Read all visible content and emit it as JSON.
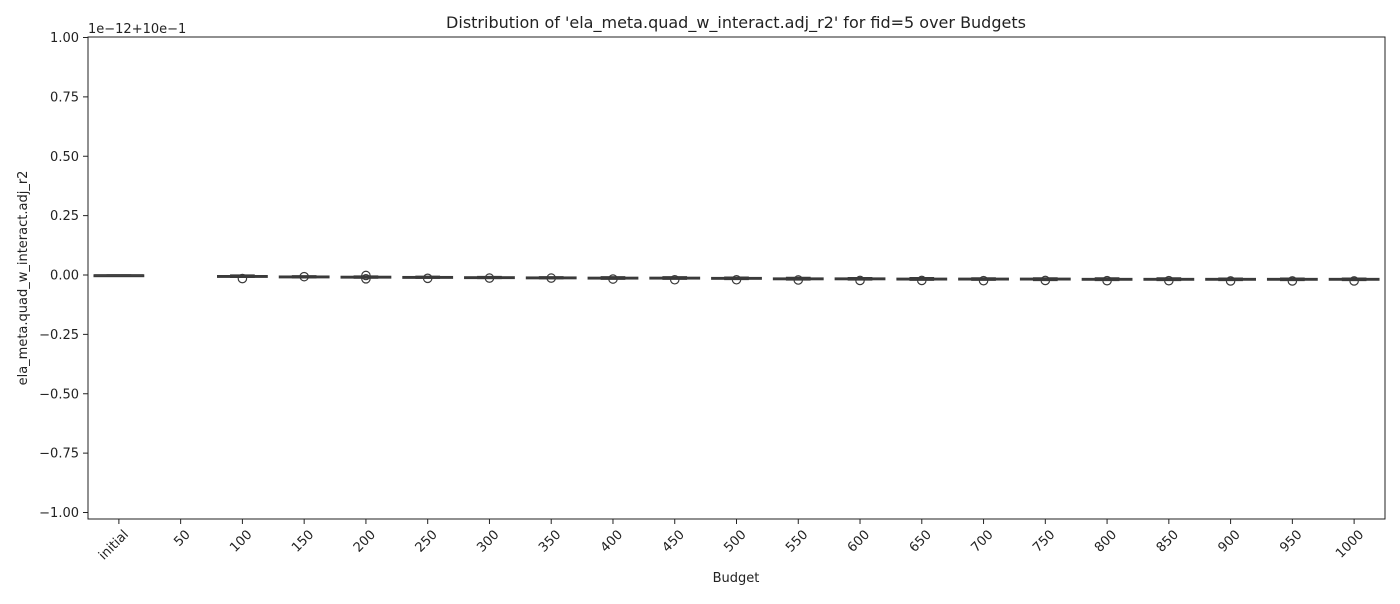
{
  "chart_data": {
    "type": "box",
    "title": "Distribution of 'ela_meta.quad_w_interact.adj_r2' for fid=5 over Budgets",
    "xlabel": "Budget",
    "ylabel": "ela_meta.quad_w_interact.adj_r2",
    "offset_label": "1e−12+10e−1",
    "ylim": [
      -1.0,
      1.0
    ],
    "ytick_values": [
      -1.0,
      -0.75,
      -0.5,
      -0.25,
      0.0,
      0.25,
      0.5,
      0.75,
      1.0
    ],
    "ytick_labels": [
      "−1.00",
      "−0.75",
      "−0.50",
      "−0.25",
      "0.00",
      "0.25",
      "0.50",
      "0.75",
      "1.00"
    ],
    "categories": [
      "initial",
      "50",
      "100",
      "150",
      "200",
      "250",
      "300",
      "350",
      "400",
      "450",
      "500",
      "550",
      "600",
      "650",
      "700",
      "750",
      "800",
      "850",
      "900",
      "950",
      "1000"
    ],
    "grid": false,
    "box_color": "#3a3a3a",
    "boxes": [
      {
        "category": "initial",
        "min": 0.0,
        "q1": 0.0,
        "median": 0.0,
        "q3": 0.0,
        "max": 0.0,
        "outliers": []
      },
      null,
      {
        "category": "100",
        "min": -0.01,
        "q1": -0.008,
        "median": -0.005,
        "q3": -0.003,
        "max": 0.0,
        "outliers": [
          -0.015
        ]
      },
      {
        "category": "150",
        "min": -0.012,
        "q1": -0.009,
        "median": -0.007,
        "q3": -0.005,
        "max": -0.003,
        "outliers": [
          -0.007
        ]
      },
      {
        "category": "200",
        "min": -0.013,
        "q1": -0.01,
        "median": -0.008,
        "q3": -0.006,
        "max": -0.004,
        "outliers": [
          -0.002,
          -0.016
        ]
      },
      {
        "category": "250",
        "min": -0.014,
        "q1": -0.011,
        "median": -0.009,
        "q3": -0.007,
        "max": -0.005,
        "outliers": [
          -0.014
        ]
      },
      {
        "category": "300",
        "min": -0.015,
        "q1": -0.012,
        "median": -0.01,
        "q3": -0.008,
        "max": -0.006,
        "outliers": [
          -0.013
        ]
      },
      {
        "category": "350",
        "min": -0.016,
        "q1": -0.013,
        "median": -0.011,
        "q3": -0.009,
        "max": -0.007,
        "outliers": [
          -0.013
        ]
      },
      {
        "category": "400",
        "min": -0.018,
        "q1": -0.014,
        "median": -0.012,
        "q3": -0.01,
        "max": -0.007,
        "outliers": [
          -0.017
        ]
      },
      {
        "category": "450",
        "min": -0.018,
        "q1": -0.015,
        "median": -0.013,
        "q3": -0.01,
        "max": -0.007,
        "outliers": [
          -0.02
        ]
      },
      {
        "category": "500",
        "min": -0.019,
        "q1": -0.016,
        "median": -0.014,
        "q3": -0.011,
        "max": -0.009,
        "outliers": [
          -0.02
        ]
      },
      {
        "category": "550",
        "min": -0.021,
        "q1": -0.018,
        "median": -0.016,
        "q3": -0.013,
        "max": -0.01,
        "outliers": [
          -0.021
        ]
      },
      {
        "category": "600",
        "min": -0.021,
        "q1": -0.018,
        "median": -0.016,
        "q3": -0.013,
        "max": -0.011,
        "outliers": [
          -0.023
        ]
      },
      {
        "category": "650",
        "min": -0.022,
        "q1": -0.019,
        "median": -0.017,
        "q3": -0.014,
        "max": -0.011,
        "outliers": [
          -0.023
        ]
      },
      {
        "category": "700",
        "min": -0.022,
        "q1": -0.019,
        "median": -0.017,
        "q3": -0.014,
        "max": -0.012,
        "outliers": [
          -0.024
        ]
      },
      {
        "category": "750",
        "min": -0.023,
        "q1": -0.02,
        "median": -0.017,
        "q3": -0.014,
        "max": -0.012,
        "outliers": [
          -0.023
        ]
      },
      {
        "category": "800",
        "min": -0.023,
        "q1": -0.02,
        "median": -0.017,
        "q3": -0.015,
        "max": -0.012,
        "outliers": [
          -0.024
        ]
      },
      {
        "category": "850",
        "min": -0.023,
        "q1": -0.02,
        "median": -0.018,
        "q3": -0.015,
        "max": -0.012,
        "outliers": [
          -0.024
        ]
      },
      {
        "category": "900",
        "min": -0.023,
        "q1": -0.02,
        "median": -0.018,
        "q3": -0.015,
        "max": -0.013,
        "outliers": [
          -0.025
        ]
      },
      {
        "category": "950",
        "min": -0.023,
        "q1": -0.02,
        "median": -0.018,
        "q3": -0.015,
        "max": -0.013,
        "outliers": [
          -0.025
        ]
      },
      {
        "category": "1000",
        "min": -0.023,
        "q1": -0.02,
        "median": -0.018,
        "q3": -0.015,
        "max": -0.013,
        "outliers": [
          -0.025
        ]
      }
    ]
  }
}
